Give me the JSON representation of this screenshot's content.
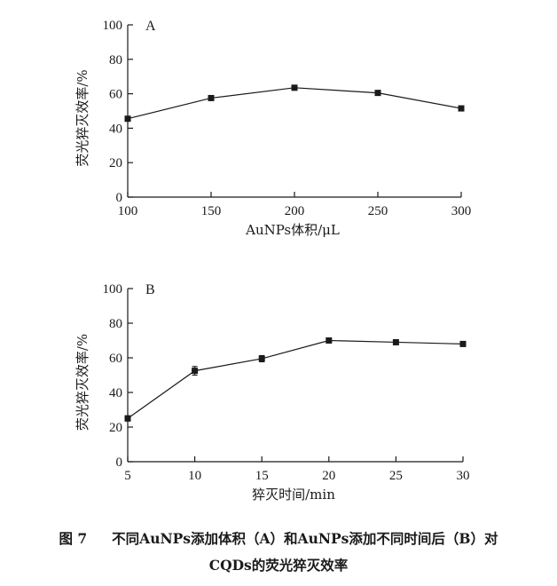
{
  "chart_data": [
    {
      "type": "line",
      "panel_label": "A",
      "xlabel": "AuNPs体积/μL",
      "ylabel": "荧光猝灭效率/%",
      "xlim": [
        100,
        300
      ],
      "ylim": [
        0,
        100
      ],
      "x_ticks": [
        100,
        150,
        200,
        250,
        300
      ],
      "y_ticks": [
        0,
        20,
        40,
        60,
        80,
        100
      ],
      "grid": false,
      "series": [
        {
          "x": [
            100,
            150,
            200,
            250,
            300
          ],
          "values": [
            45.5,
            57.5,
            63.5,
            60.5,
            51.5
          ],
          "errors": [
            0,
            0,
            0,
            0,
            0
          ],
          "marker": "square"
        }
      ]
    },
    {
      "type": "line",
      "panel_label": "B",
      "xlabel": "猝灭时间/min",
      "ylabel": "荧光猝灭效率/%",
      "xlim": [
        5,
        30
      ],
      "ylim": [
        0,
        100
      ],
      "x_ticks": [
        5,
        10,
        15,
        20,
        25,
        30
      ],
      "y_ticks": [
        0,
        20,
        40,
        60,
        80,
        100
      ],
      "grid": false,
      "series": [
        {
          "x": [
            5,
            10,
            15,
            20,
            25,
            30
          ],
          "values": [
            25,
            52.5,
            59.5,
            70,
            69,
            68
          ],
          "errors": [
            1.5,
            2.5,
            1.8,
            0.5,
            0.8,
            1.0
          ],
          "marker": "square"
        }
      ]
    }
  ],
  "caption": {
    "number": "图 7",
    "line1": "不同AuNPs添加体积（A）和AuNPs添加不同时间后（B）对",
    "line2": "CQDs的荧光猝灭效率"
  }
}
